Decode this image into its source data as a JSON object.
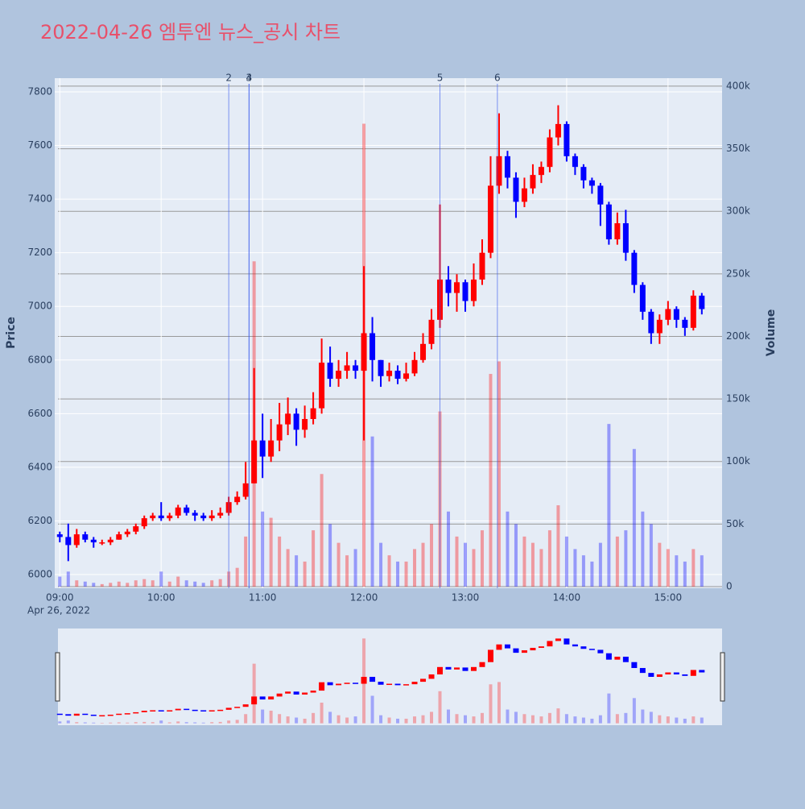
{
  "chart_data": {
    "type": "candlestick",
    "title": "2022-04-26 엠투엔 뉴스_공시 차트",
    "y_label": "Price",
    "y2_label": "Volume",
    "x_date_label": "Apr 26, 2022",
    "up_color": "#ff0000",
    "down_color": "#0000ff",
    "title_color": "#e8506a",
    "xlim": [
      "2022-04-26 08:57",
      "2022-04-26 15:32"
    ],
    "xticks": [
      {
        "value": "2022-04-26 09:00",
        "label": "09:00"
      },
      {
        "value": "2022-04-26 10:00",
        "label": "10:00"
      },
      {
        "value": "2022-04-26 11:00",
        "label": "11:00"
      },
      {
        "value": "2022-04-26 12:00",
        "label": "12:00"
      },
      {
        "value": "2022-04-26 13:00",
        "label": "13:00"
      },
      {
        "value": "2022-04-26 14:00",
        "label": "14:00"
      },
      {
        "value": "2022-04-26 15:00",
        "label": "15:00"
      }
    ],
    "ylim": [
      5949,
      7851
    ],
    "yticks": [
      6000,
      6200,
      6400,
      6600,
      6800,
      7000,
      7200,
      7400,
      7600,
      7800
    ],
    "y2lim": [
      -1300,
      406400
    ],
    "y2ticks": [
      0,
      {
        "value": 50000,
        "label": "50k"
      },
      {
        "value": 100000,
        "label": "100k"
      },
      {
        "value": 150000,
        "label": "150k"
      },
      {
        "value": 200000,
        "label": "200k"
      },
      {
        "value": 250000,
        "label": "250k"
      },
      {
        "value": 300000,
        "label": "300k"
      },
      {
        "value": 350000,
        "label": "350k"
      },
      {
        "value": 400000,
        "label": "400k"
      }
    ],
    "annotations": [
      {
        "x": "2022-04-26 10:40",
        "label": "2"
      },
      {
        "x": "2022-04-26 10:52",
        "label": "3"
      },
      {
        "x": "2022-04-26 10:52",
        "label": "4"
      },
      {
        "x": "2022-04-26 12:45",
        "label": "5"
      },
      {
        "x": "2022-04-26 13:19",
        "label": "6"
      }
    ],
    "x": [
      "2022-04-26 09:00",
      "2022-04-26 09:05",
      "2022-04-26 09:10",
      "2022-04-26 09:15",
      "2022-04-26 09:20",
      "2022-04-26 09:25",
      "2022-04-26 09:30",
      "2022-04-26 09:35",
      "2022-04-26 09:40",
      "2022-04-26 09:45",
      "2022-04-26 09:50",
      "2022-04-26 09:55",
      "2022-04-26 10:00",
      "2022-04-26 10:05",
      "2022-04-26 10:10",
      "2022-04-26 10:15",
      "2022-04-26 10:20",
      "2022-04-26 10:25",
      "2022-04-26 10:30",
      "2022-04-26 10:35",
      "2022-04-26 10:40",
      "2022-04-26 10:45",
      "2022-04-26 10:50",
      "2022-04-26 10:55",
      "2022-04-26 11:00",
      "2022-04-26 11:05",
      "2022-04-26 11:10",
      "2022-04-26 11:15",
      "2022-04-26 11:20",
      "2022-04-26 11:25",
      "2022-04-26 11:30",
      "2022-04-26 11:35",
      "2022-04-26 11:40",
      "2022-04-26 11:45",
      "2022-04-26 11:50",
      "2022-04-26 11:55",
      "2022-04-26 12:00",
      "2022-04-26 12:05",
      "2022-04-26 12:10",
      "2022-04-26 12:15",
      "2022-04-26 12:20",
      "2022-04-26 12:25",
      "2022-04-26 12:30",
      "2022-04-26 12:35",
      "2022-04-26 12:40",
      "2022-04-26 12:45",
      "2022-04-26 12:50",
      "2022-04-26 12:55",
      "2022-04-26 13:00",
      "2022-04-26 13:05",
      "2022-04-26 13:10",
      "2022-04-26 13:15",
      "2022-04-26 13:20",
      "2022-04-26 13:25",
      "2022-04-26 13:30",
      "2022-04-26 13:35",
      "2022-04-26 13:40",
      "2022-04-26 13:45",
      "2022-04-26 13:50",
      "2022-04-26 13:55",
      "2022-04-26 14:00",
      "2022-04-26 14:05",
      "2022-04-26 14:10",
      "2022-04-26 14:15",
      "2022-04-26 14:20",
      "2022-04-26 14:25",
      "2022-04-26 14:30",
      "2022-04-26 14:35",
      "2022-04-26 14:40",
      "2022-04-26 14:45",
      "2022-04-26 14:50",
      "2022-04-26 14:55",
      "2022-04-26 15:00",
      "2022-04-26 15:05",
      "2022-04-26 15:10",
      "2022-04-26 15:15",
      "2022-04-26 15:20"
    ],
    "open": [
      6150,
      6140,
      6110,
      6150,
      6130,
      6120,
      6120,
      6130,
      6150,
      6160,
      6180,
      6210,
      6220,
      6210,
      6220,
      6250,
      6230,
      6220,
      6210,
      6220,
      6230,
      6270,
      6290,
      6340,
      6500,
      6440,
      6500,
      6560,
      6600,
      6540,
      6580,
      6620,
      6790,
      6730,
      6760,
      6780,
      6760,
      6900,
      6800,
      6740,
      6760,
      6730,
      6750,
      6800,
      6860,
      6950,
      7100,
      7050,
      7090,
      7020,
      7100,
      7200,
      7450,
      7560,
      7480,
      7390,
      7440,
      7490,
      7520,
      7630,
      7680,
      7560,
      7520,
      7470,
      7450,
      7380,
      7250,
      7310,
      7200,
      7080,
      6980,
      6900,
      6950,
      6990,
      6950,
      6920,
      7040
    ],
    "high": [
      6160,
      6190,
      6170,
      6160,
      6140,
      6130,
      6140,
      6160,
      6170,
      6190,
      6220,
      6230,
      6270,
      6230,
      6260,
      6260,
      6240,
      6230,
      6240,
      6250,
      6290,
      6310,
      6420,
      6770,
      6600,
      6580,
      6640,
      6660,
      6620,
      6630,
      6680,
      6880,
      6850,
      6800,
      6830,
      6800,
      7150,
      6960,
      6800,
      6790,
      6780,
      6790,
      6830,
      6900,
      6990,
      7380,
      7150,
      7120,
      7100,
      7160,
      7250,
      7560,
      7720,
      7580,
      7500,
      7480,
      7530,
      7540,
      7660,
      7750,
      7690,
      7570,
      7530,
      7480,
      7460,
      7390,
      7350,
      7360,
      7210,
      7090,
      6990,
      6970,
      7020,
      7000,
      6960,
      7060,
      7050
    ],
    "low": [
      6120,
      6050,
      6100,
      6120,
      6100,
      6110,
      6110,
      6130,
      6140,
      6150,
      6170,
      6200,
      6200,
      6200,
      6210,
      6220,
      6200,
      6200,
      6200,
      6210,
      6220,
      6260,
      6280,
      6340,
      6360,
      6420,
      6460,
      6520,
      6480,
      6510,
      6560,
      6600,
      6700,
      6700,
      6730,
      6730,
      6500,
      6720,
      6700,
      6720,
      6710,
      6720,
      6740,
      6790,
      6840,
      6920,
      7000,
      6980,
      6980,
      7000,
      7080,
      7180,
      7420,
      7440,
      7330,
      7370,
      7420,
      7460,
      7500,
      7600,
      7540,
      7490,
      7440,
      7420,
      7300,
      7230,
      7230,
      7170,
      7050,
      6950,
      6860,
      6860,
      6930,
      6920,
      6890,
      6910,
      6970
    ],
    "close": [
      6140,
      6110,
      6150,
      6130,
      6120,
      6120,
      6130,
      6150,
      6160,
      6180,
      6210,
      6220,
      6210,
      6220,
      6250,
      6230,
      6220,
      6210,
      6220,
      6230,
      6270,
      6290,
      6340,
      6500,
      6440,
      6500,
      6560,
      6600,
      6540,
      6580,
      6620,
      6790,
      6730,
      6760,
      6780,
      6760,
      6900,
      6800,
      6740,
      6760,
      6730,
      6750,
      6800,
      6860,
      6950,
      7100,
      7050,
      7090,
      7020,
      7100,
      7200,
      7450,
      7560,
      7480,
      7390,
      7440,
      7490,
      7520,
      7630,
      7680,
      7560,
      7520,
      7470,
      7450,
      7380,
      7250,
      7310,
      7200,
      7080,
      6980,
      6900,
      6950,
      6990,
      6950,
      6920,
      7040,
      6990
    ],
    "volume": [
      8000,
      12000,
      5000,
      4000,
      3000,
      2000,
      3000,
      4000,
      3000,
      5000,
      6000,
      5000,
      12000,
      4000,
      8000,
      5000,
      4000,
      3000,
      5000,
      6000,
      12000,
      15000,
      40000,
      260000,
      60000,
      55000,
      40000,
      30000,
      25000,
      20000,
      45000,
      90000,
      50000,
      35000,
      25000,
      30000,
      370000,
      120000,
      35000,
      25000,
      20000,
      20000,
      30000,
      35000,
      50000,
      140000,
      60000,
      40000,
      35000,
      30000,
      45000,
      170000,
      180000,
      60000,
      50000,
      40000,
      35000,
      30000,
      45000,
      65000,
      40000,
      30000,
      25000,
      20000,
      35000,
      130000,
      40000,
      45000,
      110000,
      60000,
      50000,
      35000,
      30000,
      25000,
      20000,
      30000,
      25000
    ]
  }
}
